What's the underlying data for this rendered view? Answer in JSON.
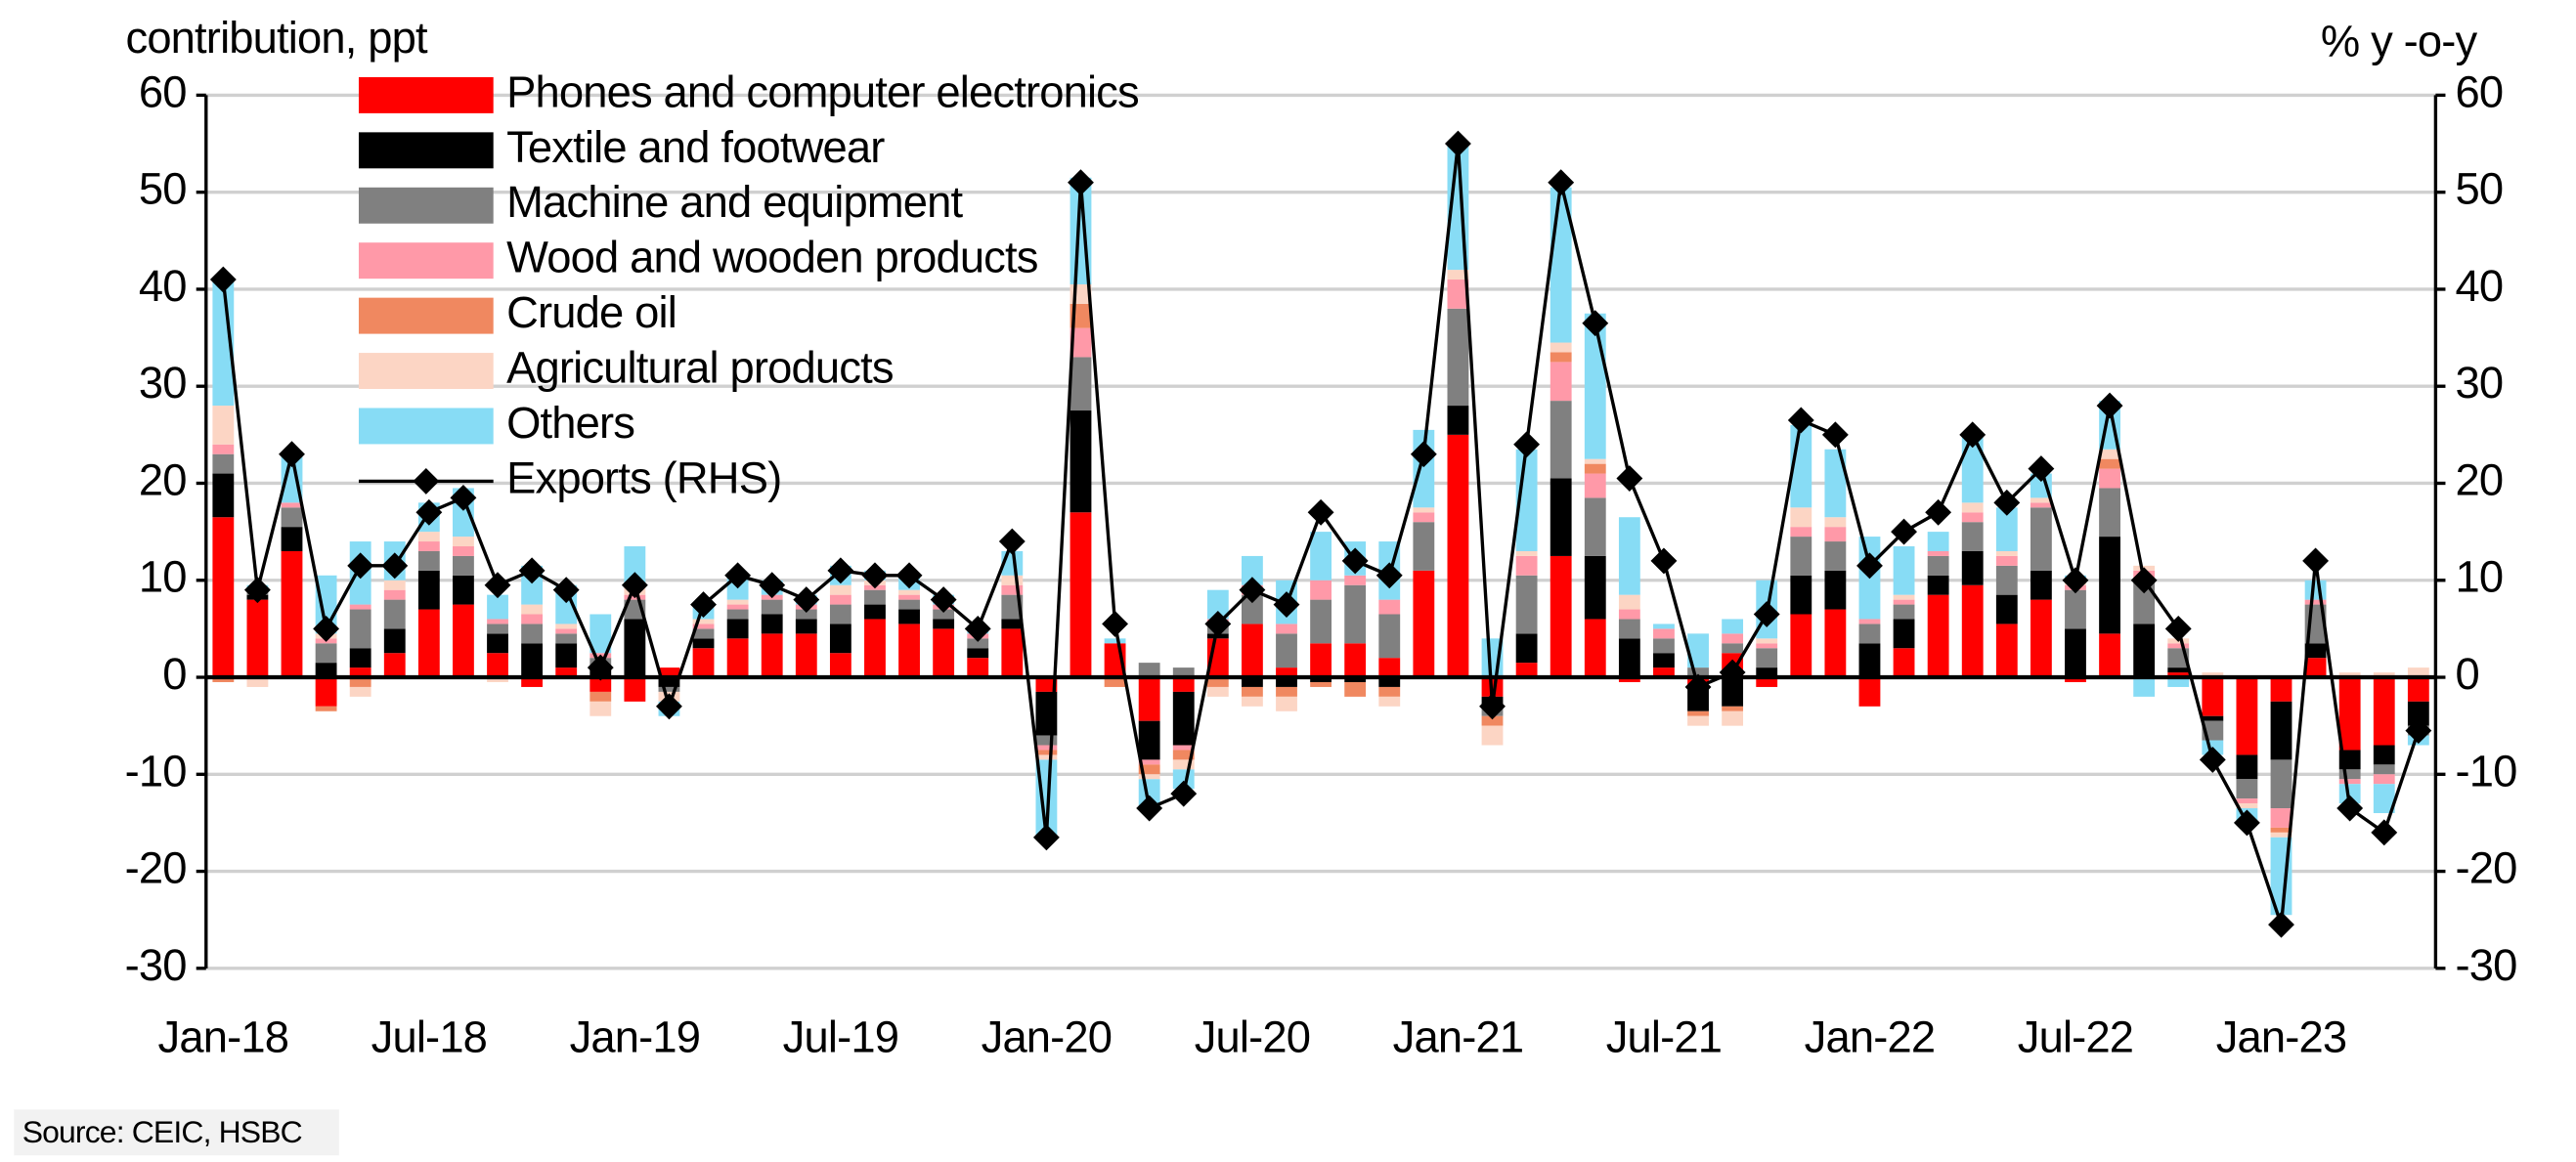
{
  "chart_data": {
    "type": "bar",
    "ylabel": "contribution, ppt",
    "y2label": "% y -o-y",
    "source": "Source: CEIC, HSBC",
    "stacked": true,
    "grid": true,
    "legend": "upper left",
    "categories": [
      "Jan-18",
      null,
      null,
      null,
      null,
      null,
      "Jul-18",
      null,
      null,
      null,
      null,
      null,
      "Jan-19",
      null,
      null,
      null,
      null,
      null,
      "Jul-19",
      null,
      null,
      null,
      null,
      null,
      "Jan-20",
      null,
      null,
      null,
      null,
      null,
      "Jul-20",
      null,
      null,
      null,
      null,
      null,
      "Jan-21",
      null,
      null,
      null,
      null,
      null,
      "Jul-21",
      null,
      null,
      null,
      null,
      null,
      "Jan-22",
      null,
      null,
      null,
      null,
      null,
      "Jul-22",
      null,
      null,
      null,
      null,
      null,
      "Jan-23",
      null,
      null,
      null,
      null
    ],
    "ylim": [
      -30,
      60
    ],
    "yticks": [
      -30,
      -20,
      -10,
      0,
      10,
      20,
      30,
      40,
      50,
      60
    ],
    "y2lim": [
      -30,
      60
    ],
    "y2ticks": [
      -30,
      -20,
      -10,
      0,
      10,
      20,
      30,
      40,
      50,
      60
    ],
    "series": [
      {
        "name": "Phones and computer electronics",
        "color": "#ff0000",
        "values": [
          16.5,
          8,
          13,
          -3,
          1,
          2.5,
          7,
          7.5,
          2.5,
          -1,
          1,
          -1.5,
          -2.5,
          1,
          3,
          4,
          4.5,
          4.5,
          2.5,
          6,
          5.5,
          5,
          2,
          5,
          -1.5,
          17,
          3.5,
          -4.5,
          -1.5,
          4,
          5.5,
          1,
          3.5,
          3.5,
          2,
          11,
          25,
          -2,
          1.5,
          12.5,
          6,
          -0.5,
          1,
          -1,
          2.5,
          -1,
          6.5,
          7,
          -3,
          3,
          8.5,
          9.5,
          5.5,
          8,
          -0.5,
          4.5,
          0,
          0.5,
          -4,
          -8,
          -2.5,
          2,
          -7.5,
          -7,
          -2.5
        ]
      },
      {
        "name": "Textile and footwear",
        "color": "#000000",
        "values": [
          4.5,
          0.5,
          2.5,
          1.5,
          2,
          2.5,
          4,
          3,
          2,
          3.5,
          2.5,
          1,
          6,
          -1,
          1,
          2,
          2,
          1.5,
          3,
          1.5,
          1.5,
          1,
          1,
          1,
          -4.5,
          10.5,
          0,
          -4,
          -5.5,
          0.5,
          -1,
          -1,
          -0.5,
          -0.5,
          -1,
          0,
          3,
          -1,
          3,
          8,
          6.5,
          4,
          1.5,
          -2.5,
          -3,
          1,
          4,
          4,
          3.5,
          3,
          2,
          3.5,
          3,
          3,
          5,
          10,
          5.5,
          0.5,
          -0.5,
          -2.5,
          -6,
          1.5,
          -2,
          -2,
          -2.5
        ]
      },
      {
        "name": "Machine and equipment",
        "color": "#808080",
        "values": [
          2,
          0.5,
          2,
          2,
          4,
          3,
          2,
          2,
          1,
          2,
          1,
          1,
          2,
          -0.5,
          1,
          1,
          1.5,
          1,
          2,
          1.5,
          1,
          1,
          1,
          2.5,
          -1,
          5.5,
          0,
          1.5,
          1,
          1,
          3,
          3.5,
          4.5,
          6,
          4.5,
          5,
          10,
          -1,
          6,
          8,
          6,
          2,
          1.5,
          1,
          1,
          2,
          4,
          3,
          2,
          1.5,
          2,
          3,
          3,
          6.5,
          4,
          5,
          4.5,
          2,
          -2,
          -2,
          -5,
          4,
          -1,
          -1,
          -1
        ]
      },
      {
        "name": "Wood and wooden products",
        "color": "#ff99a8",
        "values": [
          1,
          0,
          0.5,
          0.5,
          0.5,
          1,
          1,
          1,
          0.5,
          1,
          0.5,
          0.5,
          0.5,
          0,
          0.5,
          0.5,
          0.5,
          0.5,
          1,
          0.5,
          0.5,
          0.5,
          0.5,
          1,
          -0.5,
          3,
          0,
          -0.5,
          -0.5,
          0.5,
          1,
          1,
          2,
          1,
          1.5,
          1,
          3,
          0,
          2,
          4,
          2.5,
          1,
          1,
          0,
          1,
          0.5,
          1,
          1.5,
          0.5,
          0.5,
          0.5,
          1,
          1,
          0.5,
          0.5,
          2,
          1,
          0.5,
          0,
          -0.5,
          -2,
          0.5,
          -0.5,
          -1,
          0
        ]
      },
      {
        "name": "Crude oil",
        "color": "#f08860",
        "values": [
          -0.5,
          0,
          0,
          -0.5,
          -1,
          0,
          0,
          0,
          0,
          0,
          0,
          -1,
          0,
          0,
          0,
          0,
          0,
          0,
          0,
          0,
          0,
          0,
          0,
          0,
          -0.5,
          2.5,
          -1,
          -1,
          -1,
          -1,
          -1,
          -1,
          -0.5,
          -1.5,
          -1,
          0,
          0,
          -1,
          0,
          1,
          1,
          0,
          0,
          -0.5,
          -0.5,
          0,
          0,
          0,
          0,
          0,
          0,
          0,
          0,
          0,
          0,
          1,
          0,
          0,
          0,
          0,
          -0.5,
          0,
          0,
          0,
          0
        ]
      },
      {
        "name": "Agricultural products",
        "color": "#fcd5c4",
        "values": [
          4,
          -1,
          0,
          0.5,
          -1,
          1,
          1,
          1,
          -0.5,
          1,
          0.5,
          -1.5,
          1,
          -1,
          0.5,
          0.5,
          0,
          0,
          1,
          0.5,
          0.5,
          0,
          0,
          1,
          -0.5,
          2,
          0,
          -0.5,
          -1,
          -1,
          -1,
          -1.5,
          0,
          0,
          -1,
          0.5,
          1,
          -2,
          0.5,
          1,
          0.5,
          1.5,
          0,
          -1,
          -1.5,
          0.5,
          2,
          1,
          0,
          0.5,
          0,
          1,
          0.5,
          0.5,
          0.5,
          1,
          0.5,
          0.5,
          0.5,
          -0.5,
          -0.5,
          0,
          0.5,
          0.5,
          1
        ]
      },
      {
        "name": "Others",
        "color": "#87dcf5",
        "values": [
          13,
          0.5,
          5,
          6,
          6.5,
          4,
          3,
          5,
          2.5,
          4,
          4,
          4,
          4,
          -1.5,
          1.5,
          2.5,
          1.5,
          1,
          2,
          1,
          1.5,
          1,
          0.5,
          2.5,
          -8,
          11,
          0.5,
          -3,
          -2,
          3,
          3,
          4.5,
          5,
          3.5,
          6,
          8,
          13,
          4,
          10.5,
          16,
          15,
          8,
          0.5,
          3.5,
          1.5,
          6,
          8.5,
          7,
          8.5,
          5,
          2,
          7,
          4.5,
          2.5,
          0.5,
          5,
          -2,
          -1,
          -1.5,
          -1.5,
          -8,
          2,
          -2,
          -3,
          -1
        ]
      },
      {
        "name": "Exports (RHS)",
        "color": "#000000",
        "axis": "y2",
        "type": "line",
        "values": [
          41,
          9,
          23,
          5,
          11.5,
          11.5,
          17,
          18.5,
          9.5,
          11,
          9,
          1,
          9.5,
          -3,
          7.5,
          10.5,
          9.5,
          8,
          11,
          10.5,
          10.5,
          8,
          5,
          14,
          -16.5,
          51,
          5.5,
          -13.5,
          -12,
          5.5,
          9,
          7.5,
          17,
          12,
          10.5,
          23,
          55,
          -3,
          24,
          51,
          36.5,
          20.5,
          12,
          -1,
          0.5,
          6.5,
          26.5,
          25,
          11.5,
          15,
          17,
          25,
          18,
          21.5,
          10,
          28,
          10,
          5,
          -8.5,
          -15,
          -25.5,
          12,
          -13.5,
          -16,
          -5.5
        ]
      }
    ]
  }
}
